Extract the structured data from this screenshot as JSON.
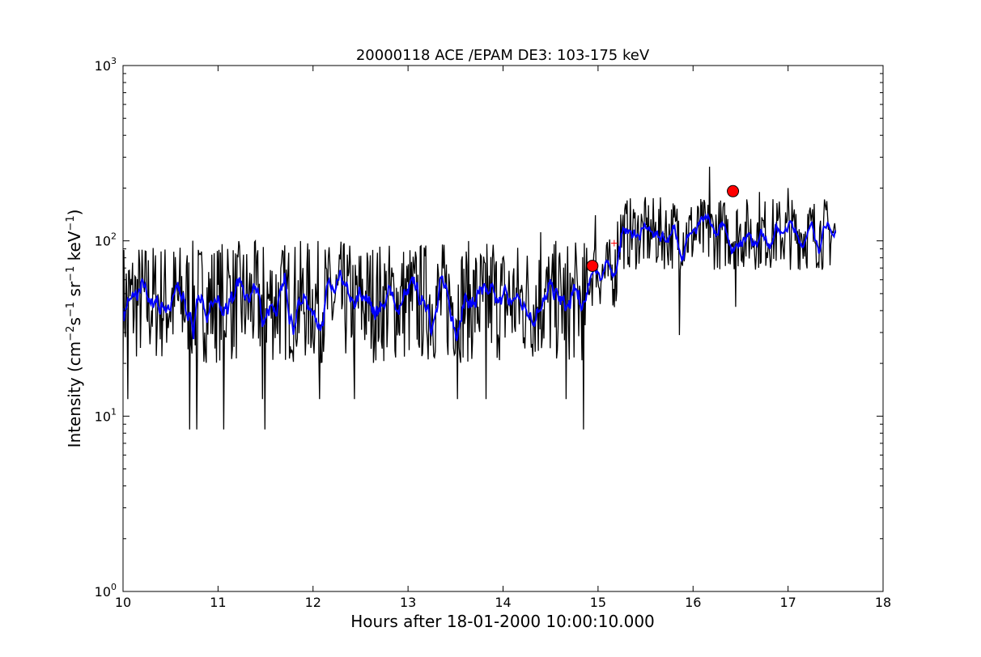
{
  "chart_data": {
    "type": "line",
    "title": "20000118 ACE /EPAM DE3: 103-175 keV",
    "xlabel": "Hours after 18-01-2000 10:00:10.000",
    "ylabel": {
      "prefix": "Intensity (cm",
      "exp1": "−2",
      "mid1": "s",
      "exp2": "−1",
      "mid2": " sr",
      "exp3": "−1",
      "mid3": " keV",
      "exp4": "−1",
      "suffix": ")"
    },
    "xlim": [
      10,
      18
    ],
    "ylim": [
      1,
      1000
    ],
    "yscale": "log",
    "grid": false,
    "x_ticks": [
      "10",
      "11",
      "12",
      "13",
      "14",
      "15",
      "16",
      "17",
      "18"
    ],
    "y_ticks": [
      {
        "base": "10",
        "exp": "0"
      },
      {
        "base": "10",
        "exp": "1"
      },
      {
        "base": "10",
        "exp": "2"
      },
      {
        "base": "10",
        "exp": "3"
      }
    ],
    "series": [
      {
        "color": "#000000",
        "x_start": 10.0,
        "x_end": 17.5,
        "segments": [
          {
            "x0": 10.0,
            "x1": 14.9,
            "level": 45,
            "lo": 12,
            "hi": 80
          },
          {
            "x0": 14.9,
            "x1": 15.2,
            "level": 65,
            "lo": 40,
            "hi": 120
          },
          {
            "x0": 15.2,
            "x1": 17.5,
            "level": 110,
            "lo": 55,
            "hi": 170
          }
        ],
        "dips": [
          {
            "x": 10.05,
            "y": 12.5
          },
          {
            "x": 10.7,
            "y": 8.4
          },
          {
            "x": 10.78,
            "y": 8.4
          },
          {
            "x": 11.06,
            "y": 8.4
          },
          {
            "x": 11.47,
            "y": 12.5
          },
          {
            "x": 11.49,
            "y": 8.4
          },
          {
            "x": 12.07,
            "y": 12.5
          },
          {
            "x": 12.44,
            "y": 12.5
          },
          {
            "x": 13.52,
            "y": 12.5
          },
          {
            "x": 13.82,
            "y": 12.5
          },
          {
            "x": 14.66,
            "y": 12.5
          },
          {
            "x": 14.85,
            "y": 8.4
          },
          {
            "x": 15.86,
            "y": 29
          },
          {
            "x": 16.45,
            "y": 42
          }
        ],
        "spikes": [
          {
            "x": 11.1,
            "y": 90
          },
          {
            "x": 12.17,
            "y": 92
          },
          {
            "x": 13.9,
            "y": 95
          },
          {
            "x": 14.4,
            "y": 112
          },
          {
            "x": 14.97,
            "y": 140
          },
          {
            "x": 16.17,
            "y": 265
          },
          {
            "x": 16.7,
            "y": 190
          },
          {
            "x": 17.0,
            "y": 200
          }
        ]
      },
      {
        "color": "#0000ff",
        "x_start": 10.0,
        "x_end": 17.5,
        "smoothing": 5
      }
    ],
    "markers": [
      {
        "x": 14.94,
        "y": 72,
        "color": "#ff0000"
      },
      {
        "x": 16.42,
        "y": 192,
        "color": "#ff0000"
      }
    ],
    "minor_markers": [
      {
        "x": 15.17,
        "y": 97,
        "color": "#ff0000"
      }
    ]
  }
}
